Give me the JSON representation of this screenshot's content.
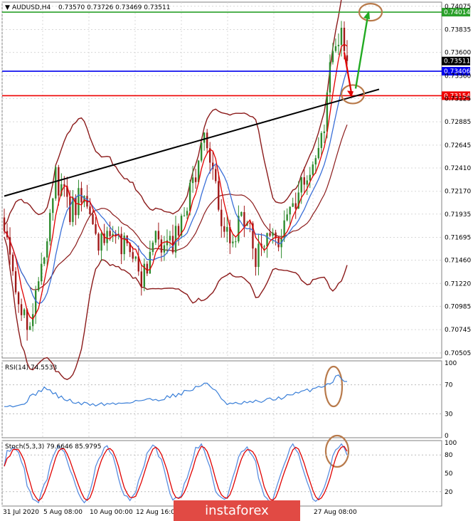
{
  "instrument_header": {
    "symbol_tf": "AUDUSD,H4",
    "ohlc": "0.73570 0.73726 0.73469 0.73511"
  },
  "colors": {
    "bull": "#2e8b2e",
    "bear": "#a01818",
    "bb": "#8b1a1a",
    "ma_fast": "#e00000",
    "ma_slow": "#3a6fd8",
    "trend": "#000000",
    "level_green": "#2aa02a",
    "level_blue": "#0000ee",
    "level_red": "#ee0000",
    "rsi_line": "#3a7fd8",
    "stoch_main": "#5a8ee0",
    "stoch_signal": "#e00000",
    "annotation_circle": "#b87a4b",
    "arrow_green": "#22aa22",
    "arrow_red": "#e00000"
  },
  "chart_data": [
    {
      "type": "candlestick",
      "panel": "price",
      "ylim": [
        0.7046,
        0.7411
      ],
      "y_ticks": [
        "0.74075",
        "0.73835",
        "0.73600",
        "0.73360",
        "0.73125",
        "0.72885",
        "0.72645",
        "0.72410",
        "0.72170",
        "0.71935",
        "0.71695",
        "0.71460",
        "0.71220",
        "0.70985",
        "0.70745",
        "0.70505"
      ],
      "x_ticks": [
        "31 Jul 2020",
        "5 Aug 08:00",
        "10 Aug 00:00",
        "12 Aug 16:00",
        "",
        "",
        "",
        "27 Aug 08:00"
      ],
      "price_tag": "0.73511",
      "levels": [
        {
          "label": "0.74014",
          "value": 0.74014,
          "color": "#2aa02a"
        },
        {
          "label": "0.73406",
          "value": 0.73406,
          "color": "#0000ee"
        },
        {
          "label": "0.73154",
          "value": 0.73154,
          "color": "#ee0000"
        }
      ],
      "trendline": {
        "from": [
          0,
          0.7212
        ],
        "to": [
          120,
          0.7312
        ]
      },
      "anchors": [
        [
          0,
          0.719
        ],
        [
          4,
          0.711
        ],
        [
          9,
          0.708
        ],
        [
          14,
          0.716
        ],
        [
          18,
          0.7232
        ],
        [
          23,
          0.7195
        ],
        [
          28,
          0.722
        ],
        [
          32,
          0.716
        ],
        [
          38,
          0.717
        ],
        [
          44,
          0.7152
        ],
        [
          48,
          0.7122
        ],
        [
          52,
          0.717
        ],
        [
          56,
          0.715
        ],
        [
          62,
          0.718
        ],
        [
          66,
          0.7228
        ],
        [
          70,
          0.7265
        ],
        [
          73,
          0.723
        ],
        [
          76,
          0.7185
        ],
        [
          80,
          0.7165
        ],
        [
          84,
          0.7195
        ],
        [
          88,
          0.715
        ],
        [
          92,
          0.7178
        ],
        [
          96,
          0.7165
        ],
        [
          100,
          0.72
        ],
        [
          104,
          0.7225
        ],
        [
          108,
          0.7255
        ],
        [
          112,
          0.729
        ],
        [
          114,
          0.734
        ],
        [
          116,
          0.7375
        ],
        [
          118,
          0.738
        ],
        [
          120,
          0.7351
        ]
      ],
      "count": 121
    },
    {
      "type": "line",
      "panel": "rsi",
      "title": "RSI(14) 74.5533",
      "ylim": [
        0,
        100
      ],
      "y_ticks": [
        "100",
        "70",
        "30",
        "0"
      ],
      "anchors": [
        [
          0,
          43
        ],
        [
          5,
          40
        ],
        [
          10,
          55
        ],
        [
          14,
          66
        ],
        [
          20,
          52
        ],
        [
          26,
          44
        ],
        [
          32,
          43
        ],
        [
          40,
          44
        ],
        [
          46,
          48
        ],
        [
          54,
          50
        ],
        [
          60,
          56
        ],
        [
          66,
          64
        ],
        [
          70,
          72
        ],
        [
          74,
          63
        ],
        [
          78,
          42
        ],
        [
          82,
          44
        ],
        [
          88,
          46
        ],
        [
          94,
          50
        ],
        [
          100,
          55
        ],
        [
          106,
          62
        ],
        [
          110,
          67
        ],
        [
          114,
          72
        ],
        [
          117,
          83
        ],
        [
          120,
          74.55
        ]
      ]
    },
    {
      "type": "line",
      "panel": "stochastic",
      "title": "Stoch(5,3,3) 79.6646 85.9795",
      "ylim": [
        0,
        100
      ],
      "y_ticks": [
        "100",
        "80",
        "50",
        "20"
      ],
      "main_last": 79.6646,
      "signal_last": 85.9795
    }
  ],
  "watermark": "instaforex"
}
